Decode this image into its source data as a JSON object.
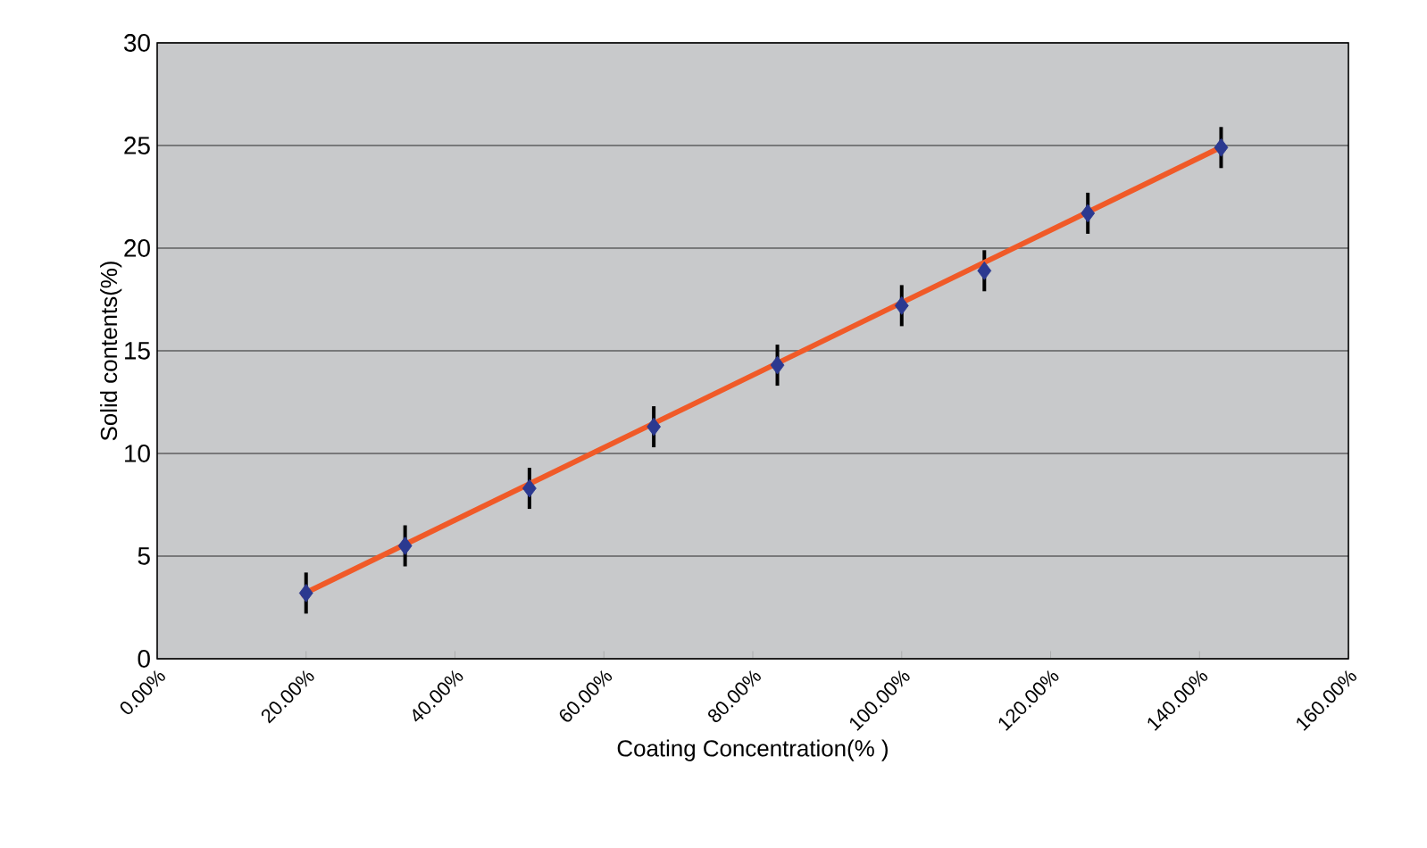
{
  "chart_data": {
    "type": "scatter",
    "xlabel": "Coating Concentration(% )",
    "ylabel": "Solid contents(%)",
    "xlim": [
      0,
      160
    ],
    "ylim": [
      0,
      30
    ],
    "xticks": [
      {
        "value": 0,
        "label": "0.00%"
      },
      {
        "value": 20,
        "label": "20.00%"
      },
      {
        "value": 40,
        "label": "40.00%"
      },
      {
        "value": 60,
        "label": "60.00%"
      },
      {
        "value": 80,
        "label": "80.00%"
      },
      {
        "value": 100,
        "label": "100.00%"
      },
      {
        "value": 120,
        "label": "120.00%"
      },
      {
        "value": 140,
        "label": "140.00%"
      },
      {
        "value": 160,
        "label": "160.00%"
      }
    ],
    "yticks": [
      0,
      5,
      10,
      15,
      20,
      25,
      30
    ],
    "grid": "y",
    "series": [
      {
        "marker": "diamond",
        "color": "#2b3990",
        "x": [
          20,
          33.3,
          50,
          66.7,
          83.3,
          100,
          111.1,
          125,
          142.9
        ],
        "values": [
          3.2,
          5.5,
          8.3,
          11.3,
          14.3,
          17.2,
          18.9,
          21.7,
          24.9
        ],
        "errors": [
          1,
          1,
          1,
          1,
          1,
          1,
          1,
          1,
          1
        ]
      },
      {
        "type": "line",
        "marker": "none",
        "color": "#f05a28",
        "x": [
          19.3,
          142.8
        ],
        "values": [
          3.1,
          24.9
        ]
      }
    ]
  }
}
